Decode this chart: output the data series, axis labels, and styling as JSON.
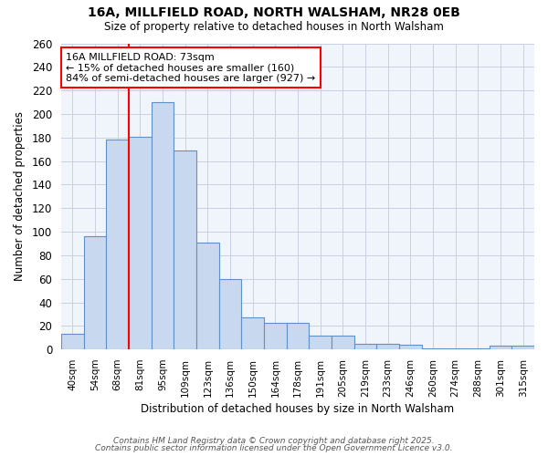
{
  "title1": "16A, MILLFIELD ROAD, NORTH WALSHAM, NR28 0EB",
  "title2": "Size of property relative to detached houses in North Walsham",
  "xlabel": "Distribution of detached houses by size in North Walsham",
  "ylabel": "Number of detached properties",
  "bar_color": "#c8d8ee",
  "bar_edge_color": "#6090c8",
  "grid_color": "#c8d0e0",
  "background_color": "#ffffff",
  "plot_bg_color": "#f0f4fb",
  "categories": [
    "40sqm",
    "54sqm",
    "68sqm",
    "81sqm",
    "95sqm",
    "109sqm",
    "123sqm",
    "136sqm",
    "150sqm",
    "164sqm",
    "178sqm",
    "191sqm",
    "205sqm",
    "219sqm",
    "233sqm",
    "246sqm",
    "260sqm",
    "274sqm",
    "288sqm",
    "301sqm",
    "315sqm"
  ],
  "values": [
    13,
    96,
    178,
    181,
    210,
    169,
    91,
    60,
    27,
    23,
    23,
    12,
    12,
    5,
    5,
    4,
    1,
    1,
    1,
    3,
    3
  ],
  "red_line_index": 2,
  "annotation_text": "16A MILLFIELD ROAD: 73sqm\n← 15% of detached houses are smaller (160)\n84% of semi-detached houses are larger (927) →",
  "ylim_max": 260,
  "ytick_step": 20,
  "footer1": "Contains HM Land Registry data © Crown copyright and database right 2025.",
  "footer2": "Contains public sector information licensed under the Open Government Licence v3.0."
}
